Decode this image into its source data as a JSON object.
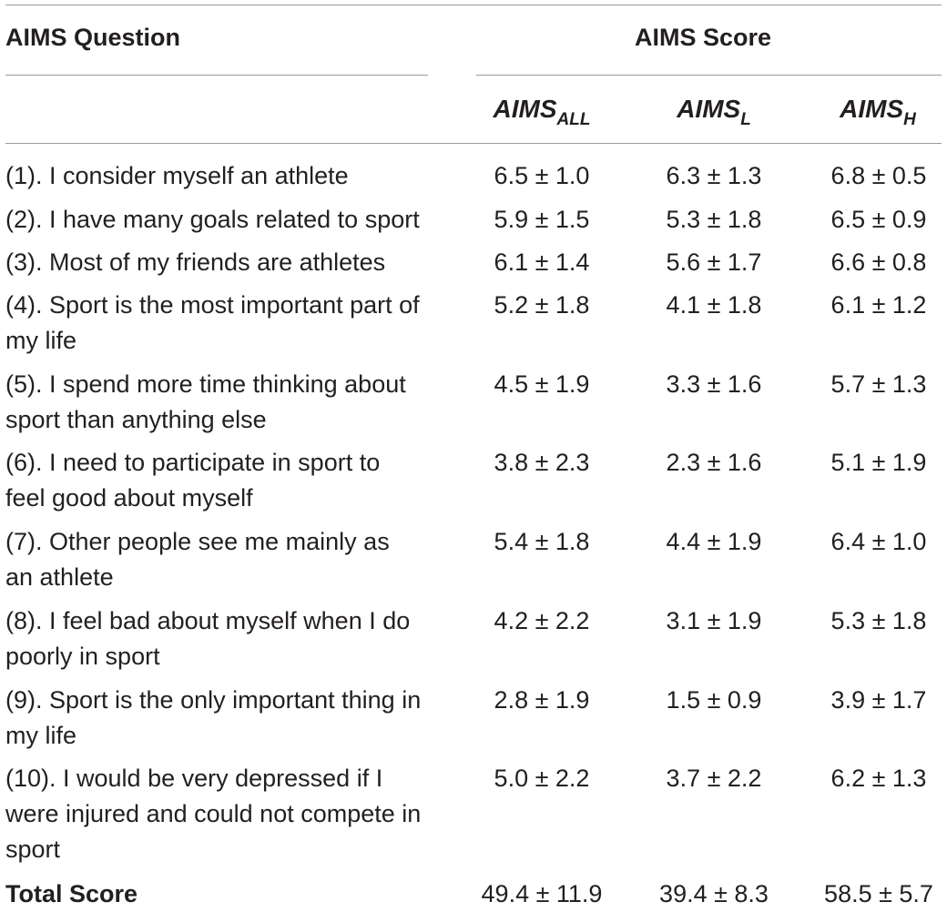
{
  "header": {
    "question": "AIMS Question",
    "score": "AIMS Score",
    "sub_all_main": "AIMS",
    "sub_all_sub": "ALL",
    "sub_l_main": "AIMS",
    "sub_l_sub": "L",
    "sub_h_main": "AIMS",
    "sub_h_sub": "H"
  },
  "rows": [
    {
      "q": "(1). I consider myself an athlete",
      "all": "6.5 ± 1.0",
      "l": "6.3 ± 1.3",
      "h": "6.8 ± 0.5"
    },
    {
      "q": "(2). I have many goals related to sport",
      "all": "5.9 ± 1.5",
      "l": "5.3 ± 1.8",
      "h": "6.5 ± 0.9"
    },
    {
      "q": "(3). Most of my friends are athletes",
      "all": "6.1 ± 1.4",
      "l": "5.6 ± 1.7",
      "h": "6.6 ± 0.8"
    },
    {
      "q": "(4). Sport is the most important part of my life",
      "all": "5.2 ± 1.8",
      "l": "4.1 ± 1.8",
      "h": "6.1 ± 1.2"
    },
    {
      "q": "(5). I spend more time thinking about sport than anything else",
      "all": "4.5 ± 1.9",
      "l": "3.3 ± 1.6",
      "h": "5.7 ± 1.3"
    },
    {
      "q": "(6). I need to participate in sport to feel good about myself",
      "all": "3.8 ± 2.3",
      "l": "2.3 ± 1.6",
      "h": "5.1 ± 1.9"
    },
    {
      "q": "(7). Other people see me mainly as an athlete",
      "all": "5.4 ± 1.8",
      "l": "4.4 ± 1.9",
      "h": "6.4 ± 1.0"
    },
    {
      "q": "(8). I feel bad about myself when I do poorly in sport",
      "all": "4.2 ± 2.2",
      "l": "3.1 ± 1.9",
      "h": "5.3 ± 1.8"
    },
    {
      "q": "(9). Sport is the only important thing in my life",
      "all": "2.8 ± 1.9",
      "l": "1.5 ± 0.9",
      "h": "3.9 ± 1.7"
    },
    {
      "q": "(10). I would be very depressed if I were injured and could not compete in sport",
      "all": "5.0 ± 2.2",
      "l": "3.7 ± 2.2",
      "h": "6.2 ± 1.3"
    }
  ],
  "total": {
    "label": "Total Score",
    "all": "49.4 ± 11.9",
    "l": "39.4 ± 8.3",
    "h": "58.5 ± 5.7"
  }
}
